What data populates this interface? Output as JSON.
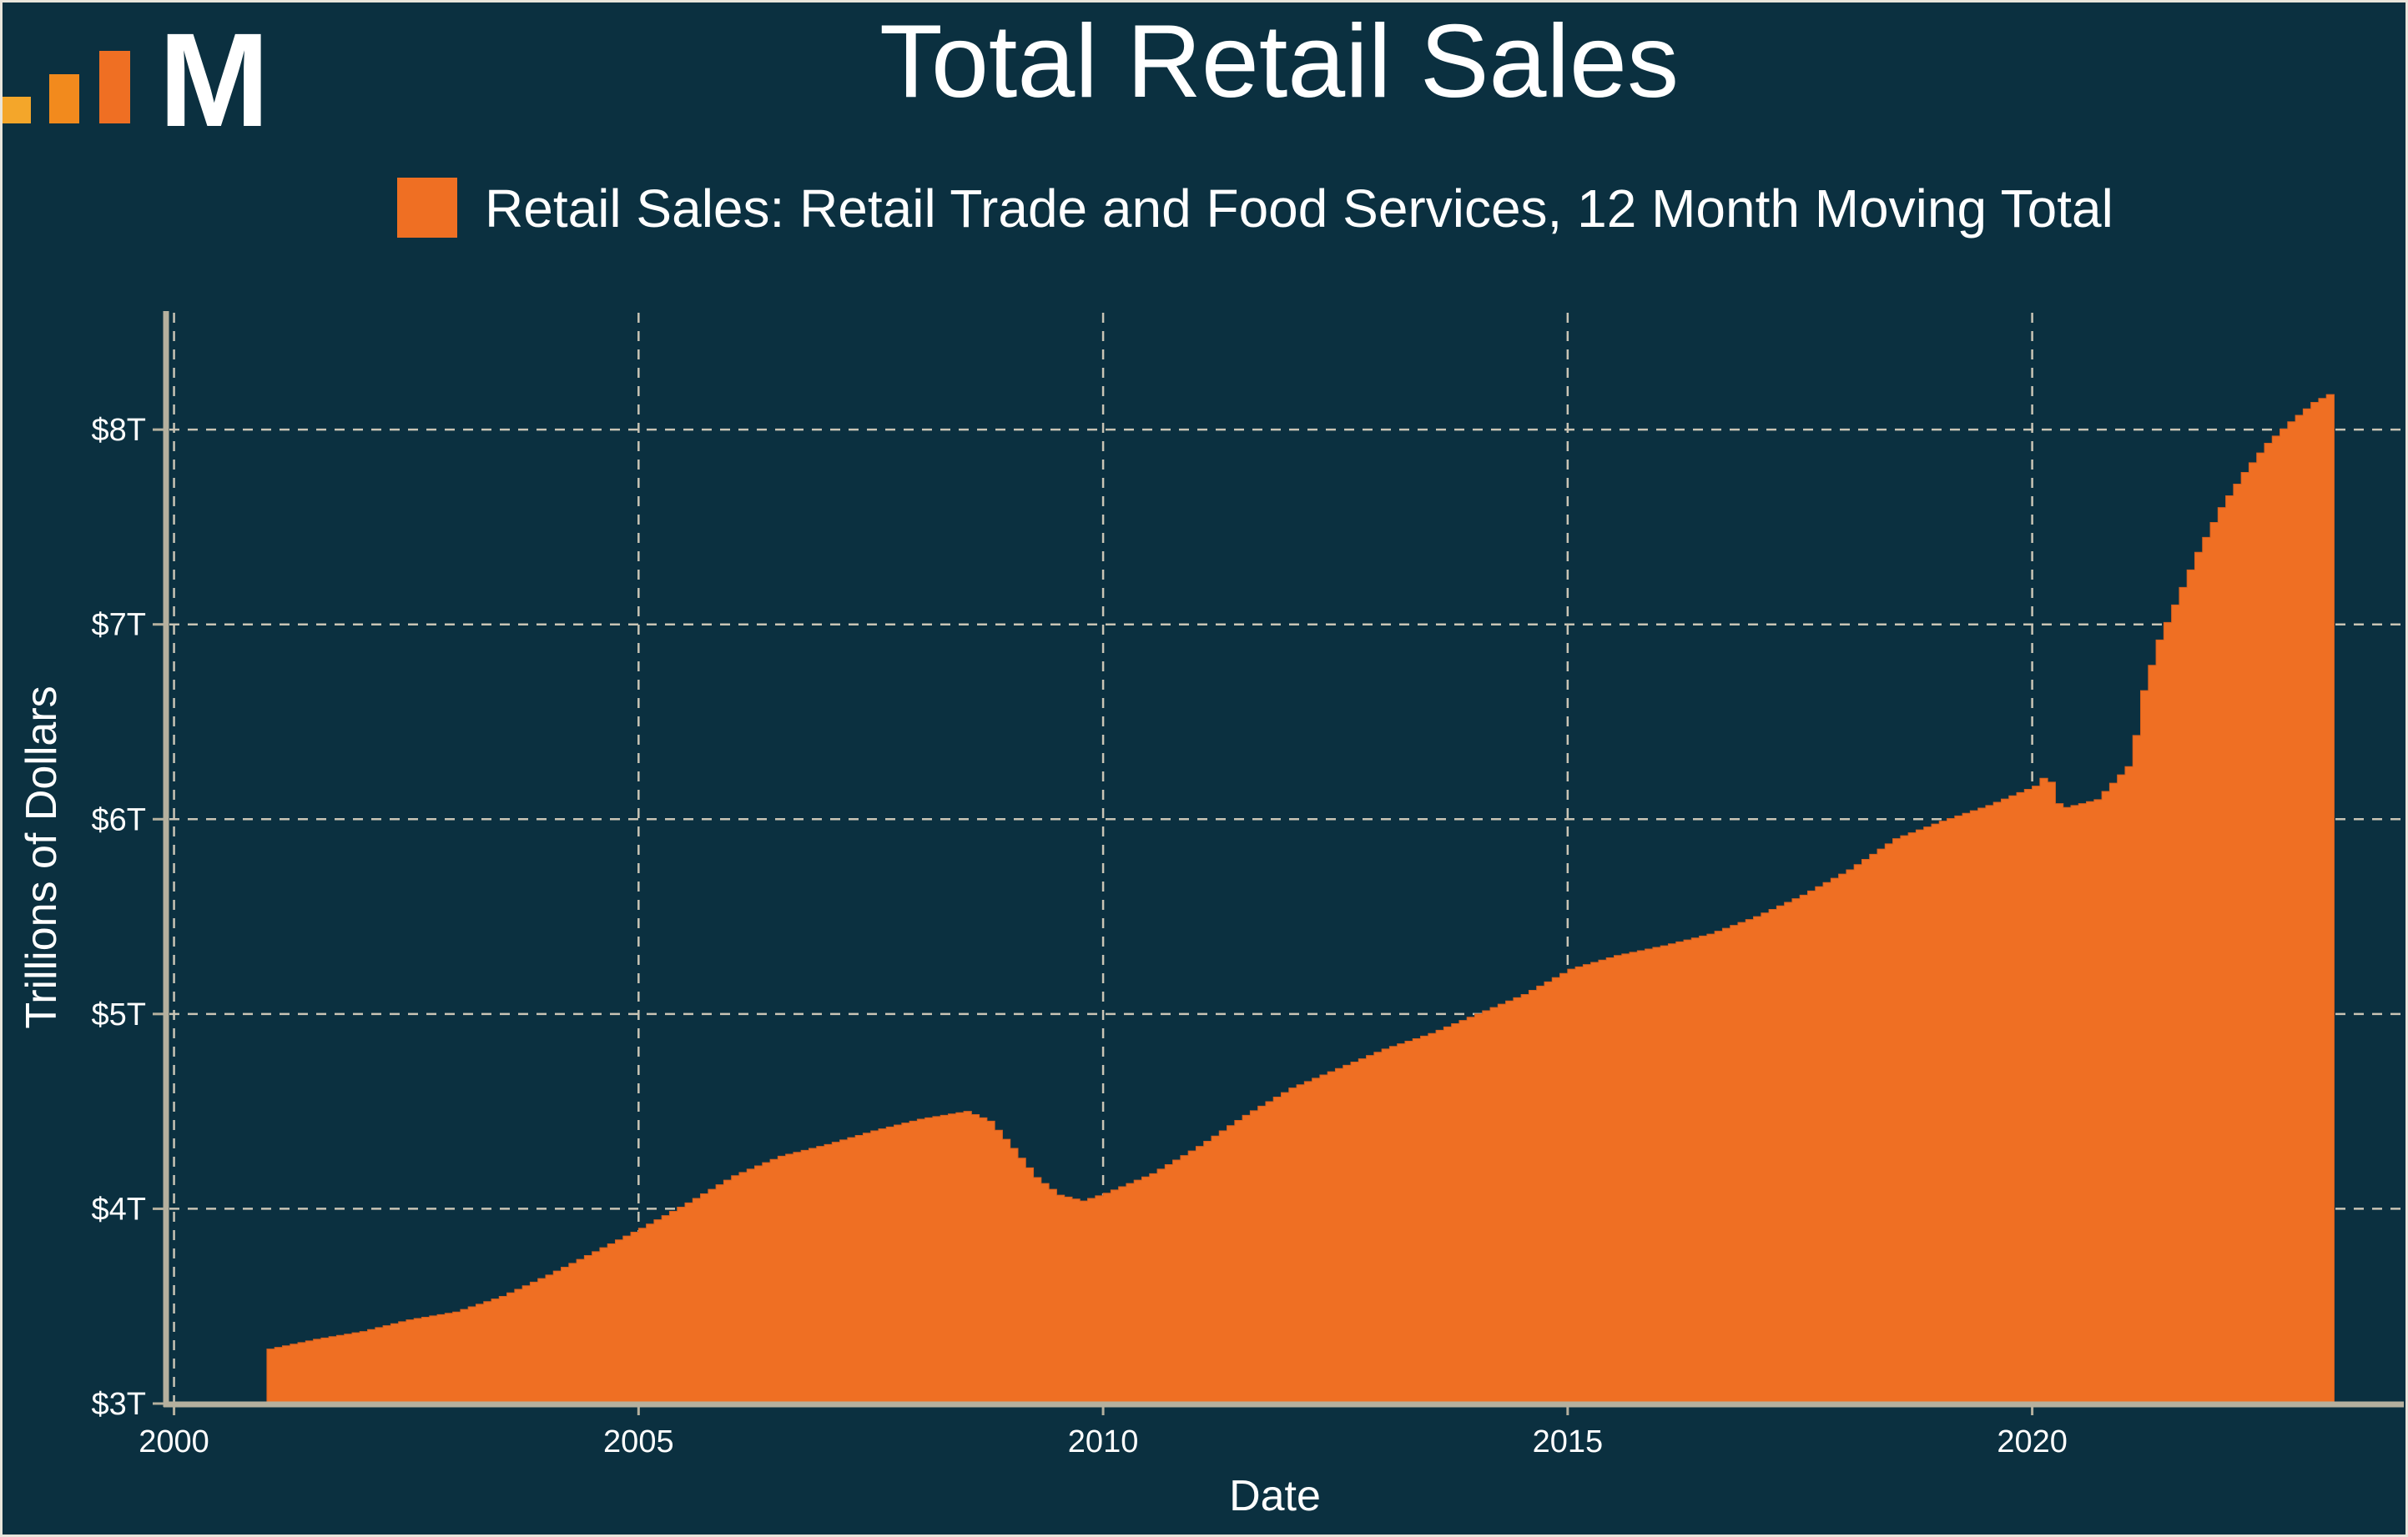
{
  "logo": {
    "letter": "M",
    "bar_colors": [
      "#f4a62a",
      "#f28a1d",
      "#ef6f23"
    ]
  },
  "chart_data": {
    "type": "area",
    "title": "Total Retail Sales",
    "legend": {
      "label": "Retail Sales: Retail Trade and Food Services, 12 Month Moving Total",
      "placement": "top"
    },
    "xlabel": "Date",
    "ylabel": "Trillions of Dollars",
    "xlim": [
      1999.95,
      2024.0
    ],
    "ylim": [
      3.0,
      8.6
    ],
    "x_ticks": [
      2000,
      2005,
      2010,
      2015,
      2020
    ],
    "x_tick_labels": [
      "2000",
      "2005",
      "2010",
      "2015",
      "2020"
    ],
    "y_ticks": [
      3,
      4,
      5,
      6,
      7,
      8
    ],
    "y_tick_labels": [
      "$3T",
      "$4T",
      "$5T",
      "$6T",
      "$7T",
      "$8T"
    ],
    "grid": true,
    "colors": {
      "background": "#0b3040",
      "series": "#ef6f23",
      "text": "#ffffff",
      "grid": "#c9c4b5",
      "axis": "#b5b09e"
    },
    "series": [
      {
        "name": "Retail Sales: Retail Trade and Food Services, 12 Month Moving Total",
        "points": [
          [
            "2001-01",
            3.28
          ],
          [
            "2001-07",
            3.33
          ],
          [
            "2002-01",
            3.37
          ],
          [
            "2002-07",
            3.43
          ],
          [
            "2003-01",
            3.47
          ],
          [
            "2003-07",
            3.55
          ],
          [
            "2004-01",
            3.66
          ],
          [
            "2004-07",
            3.78
          ],
          [
            "2005-01",
            3.9
          ],
          [
            "2005-07",
            4.03
          ],
          [
            "2006-01",
            4.17
          ],
          [
            "2006-07",
            4.27
          ],
          [
            "2007-01",
            4.33
          ],
          [
            "2007-07",
            4.4
          ],
          [
            "2008-01",
            4.46
          ],
          [
            "2008-07",
            4.5
          ],
          [
            "2008-10",
            4.45
          ],
          [
            "2009-01",
            4.31
          ],
          [
            "2009-04",
            4.16
          ],
          [
            "2009-07",
            4.07
          ],
          [
            "2009-10",
            4.04
          ],
          [
            "2010-01",
            4.08
          ],
          [
            "2010-07",
            4.18
          ],
          [
            "2011-01",
            4.32
          ],
          [
            "2011-07",
            4.48
          ],
          [
            "2012-01",
            4.62
          ],
          [
            "2012-07",
            4.72
          ],
          [
            "2013-01",
            4.82
          ],
          [
            "2013-07",
            4.9
          ],
          [
            "2014-01",
            5.0
          ],
          [
            "2014-07",
            5.1
          ],
          [
            "2015-01",
            5.23
          ],
          [
            "2015-07",
            5.3
          ],
          [
            "2016-01",
            5.35
          ],
          [
            "2016-07",
            5.41
          ],
          [
            "2017-01",
            5.5
          ],
          [
            "2017-07",
            5.61
          ],
          [
            "2018-01",
            5.74
          ],
          [
            "2018-07",
            5.9
          ],
          [
            "2019-01",
            5.99
          ],
          [
            "2019-07",
            6.07
          ],
          [
            "2020-01",
            6.17
          ],
          [
            "2020-02",
            6.21
          ],
          [
            "2020-03",
            6.19
          ],
          [
            "2020-04",
            6.08
          ],
          [
            "2020-05",
            6.06
          ],
          [
            "2020-09",
            6.1
          ],
          [
            "2021-01",
            6.27
          ],
          [
            "2021-02",
            6.43
          ],
          [
            "2021-03",
            6.66
          ],
          [
            "2021-05",
            6.92
          ],
          [
            "2021-07",
            7.1
          ],
          [
            "2021-10",
            7.37
          ],
          [
            "2022-01",
            7.6
          ],
          [
            "2022-04",
            7.78
          ],
          [
            "2022-07",
            7.93
          ],
          [
            "2022-10",
            8.04
          ],
          [
            "2023-01",
            8.14
          ],
          [
            "2023-03",
            8.18
          ]
        ]
      }
    ]
  }
}
